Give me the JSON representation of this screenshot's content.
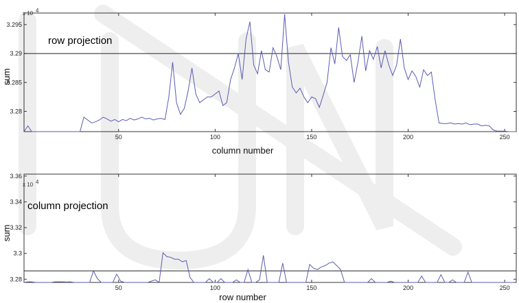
{
  "chart_data": [
    {
      "type": "line",
      "title": "row projection",
      "xlabel": "column number",
      "ylabel": "sum",
      "y_multiplier_label": "x 10",
      "y_multiplier_exp": "4",
      "xlim": [
        1,
        256
      ],
      "ylim": [
        3.2765,
        3.297
      ],
      "x_ticks": [
        50,
        100,
        150,
        200,
        250
      ],
      "y_ticks": [
        3.28,
        3.285,
        3.29,
        3.295
      ],
      "y_tick_labels": [
        "3.28",
        "3.285",
        "3.29",
        "3.295"
      ],
      "threshold": 3.29,
      "series": [
        {
          "color": "#5a5ab4",
          "x": [
            1,
            3,
            5,
            7,
            9,
            11,
            30,
            32,
            34,
            36,
            38,
            40,
            42,
            44,
            46,
            48,
            50,
            52,
            54,
            56,
            58,
            60,
            62,
            64,
            66,
            68,
            70,
            72,
            74,
            76,
            78,
            80,
            82,
            84,
            86,
            88,
            90,
            92,
            94,
            96,
            98,
            100,
            102,
            104,
            106,
            108,
            110,
            112,
            114,
            116,
            118,
            120,
            122,
            124,
            126,
            128,
            130,
            132,
            134,
            136,
            138,
            140,
            142,
            144,
            146,
            148,
            150,
            152,
            154,
            156,
            158,
            160,
            162,
            164,
            166,
            168,
            170,
            172,
            174,
            176,
            178,
            180,
            182,
            184,
            186,
            188,
            190,
            192,
            194,
            196,
            198,
            200,
            202,
            204,
            206,
            208,
            210,
            212,
            214,
            216,
            218,
            220,
            222,
            224,
            226,
            228,
            230,
            232,
            234,
            236,
            238,
            240,
            242,
            244,
            246,
            248,
            250,
            252,
            254,
            256
          ],
          "y": [
            3.2765,
            3.2775,
            3.2765,
            3.2765,
            3.2765,
            3.2765,
            3.2765,
            3.279,
            3.2785,
            3.278,
            3.2782,
            3.2785,
            3.279,
            3.2787,
            3.2783,
            3.2786,
            3.2782,
            3.2786,
            3.2784,
            3.2788,
            3.2785,
            3.2787,
            3.279,
            3.2787,
            3.2788,
            3.2785,
            3.2787,
            3.2788,
            3.2786,
            3.2825,
            3.2885,
            3.2815,
            3.2795,
            3.2805,
            3.2835,
            3.2875,
            3.283,
            3.2815,
            3.282,
            3.2825,
            3.2825,
            3.283,
            3.2835,
            3.281,
            3.2815,
            3.2855,
            3.2875,
            3.29,
            3.2855,
            3.2925,
            3.2955,
            3.288,
            3.2865,
            3.2905,
            3.2872,
            3.2868,
            3.291,
            3.2895,
            3.2872,
            3.2968,
            3.2885,
            3.2842,
            3.2832,
            3.284,
            3.2825,
            3.2815,
            3.2825,
            3.2822,
            3.2807,
            3.2828,
            3.285,
            3.291,
            3.2882,
            3.2945,
            3.2895,
            3.2888,
            3.2898,
            3.285,
            3.2885,
            3.293,
            3.287,
            3.2905,
            3.289,
            3.2912,
            3.2875,
            3.2905,
            3.288,
            3.2862,
            3.288,
            3.2925,
            3.2875,
            3.2855,
            3.287,
            3.286,
            3.2842,
            3.2872,
            3.2862,
            3.2868,
            3.282,
            3.278,
            3.2779,
            3.2779,
            3.278,
            3.2778,
            3.2779,
            3.2778,
            3.278,
            3.2777,
            3.2778,
            3.2778,
            3.2775,
            3.2776,
            3.2775,
            3.2768,
            3.2766,
            3.2766,
            3.2766,
            3.2765,
            3.2765,
            3.2765
          ]
        }
      ]
    },
    {
      "type": "line",
      "title": "column projection",
      "xlabel": "row number",
      "ylabel": "sum",
      "y_multiplier_label": "x 10",
      "y_multiplier_exp": "4",
      "xlim": [
        1,
        256
      ],
      "ylim": [
        3.2775,
        3.3615
      ],
      "x_ticks": [
        50,
        100,
        150,
        200,
        250
      ],
      "y_ticks": [
        3.28,
        3.3,
        3.32,
        3.34,
        3.36
      ],
      "y_tick_labels": [
        "3.28",
        "3.3",
        "3.32",
        "3.34",
        "3.36"
      ],
      "threshold": 3.2865,
      "series": [
        {
          "color": "#5a5ab4",
          "x": [
            1,
            3,
            5,
            7,
            9,
            11,
            13,
            15,
            17,
            19,
            21,
            23,
            25,
            27,
            29,
            31,
            33,
            35,
            37,
            39,
            41,
            43,
            45,
            47,
            49,
            51,
            53,
            55,
            57,
            59,
            61,
            63,
            65,
            67,
            69,
            71,
            73,
            75,
            77,
            79,
            81,
            83,
            85,
            87,
            89,
            91,
            93,
            95,
            97,
            99,
            101,
            103,
            105,
            107,
            109,
            111,
            113,
            115,
            117,
            119,
            121,
            123,
            125,
            127,
            129,
            131,
            133,
            135,
            137,
            139,
            141,
            143,
            145,
            147,
            149,
            151,
            153,
            155,
            157,
            159,
            161,
            163,
            165,
            167,
            169,
            171,
            173,
            175,
            177,
            179,
            181,
            183,
            185,
            187,
            189,
            191,
            193,
            195,
            197,
            199,
            201,
            203,
            205,
            207,
            209,
            211,
            213,
            215,
            217,
            219,
            221,
            223,
            225,
            227,
            229,
            231,
            233,
            235,
            237,
            239,
            241,
            243,
            245,
            247,
            249,
            251,
            253,
            255
          ],
          "y": [
            3.2775,
            3.278,
            3.278,
            3.2775,
            3.2775,
            3.2775,
            3.2775,
            3.2775,
            3.278,
            3.278,
            3.278,
            3.2778,
            3.278,
            3.2775,
            3.2775,
            3.2775,
            3.2775,
            3.2775,
            3.2865,
            3.2805,
            3.2775,
            3.2775,
            3.2775,
            3.2775,
            3.284,
            3.2785,
            3.2775,
            3.2775,
            3.2775,
            3.2775,
            3.2775,
            3.2775,
            3.2775,
            3.2785,
            3.2795,
            3.2775,
            3.3005,
            3.2975,
            3.297,
            3.2955,
            3.2955,
            3.2935,
            3.2945,
            3.2815,
            3.2775,
            3.2775,
            3.2775,
            3.2775,
            3.2805,
            3.2775,
            3.2775,
            3.2805,
            3.2775,
            3.2775,
            3.2775,
            3.2795,
            3.2775,
            3.2775,
            3.2875,
            3.2775,
            3.2775,
            3.2795,
            3.2985,
            3.2775,
            3.2775,
            3.2775,
            3.2775,
            3.2925,
            3.2775,
            3.2775,
            3.2775,
            3.2775,
            3.2775,
            3.2775,
            3.2915,
            3.2885,
            3.2875,
            3.2895,
            3.2905,
            3.2925,
            3.2935,
            3.2905,
            3.2875,
            3.2775,
            3.2775,
            3.2775,
            3.2775,
            3.2775,
            3.2775,
            3.2775,
            3.2805,
            3.2775,
            3.2775,
            3.2775,
            3.2775,
            3.2785,
            3.2775,
            3.2775,
            3.2775,
            3.2775,
            3.2775,
            3.2775,
            3.2775,
            3.2825,
            3.2775,
            3.2775,
            3.2775,
            3.2775,
            3.2835,
            3.2775,
            3.2775,
            3.2795,
            3.2775,
            3.2775,
            3.2775,
            3.2855,
            3.2775,
            3.2775,
            3.2775,
            3.2775,
            3.2775,
            3.2775,
            3.2775,
            3.2775,
            3.2775,
            3.2775,
            3.2775,
            3.2775
          ]
        }
      ]
    }
  ]
}
